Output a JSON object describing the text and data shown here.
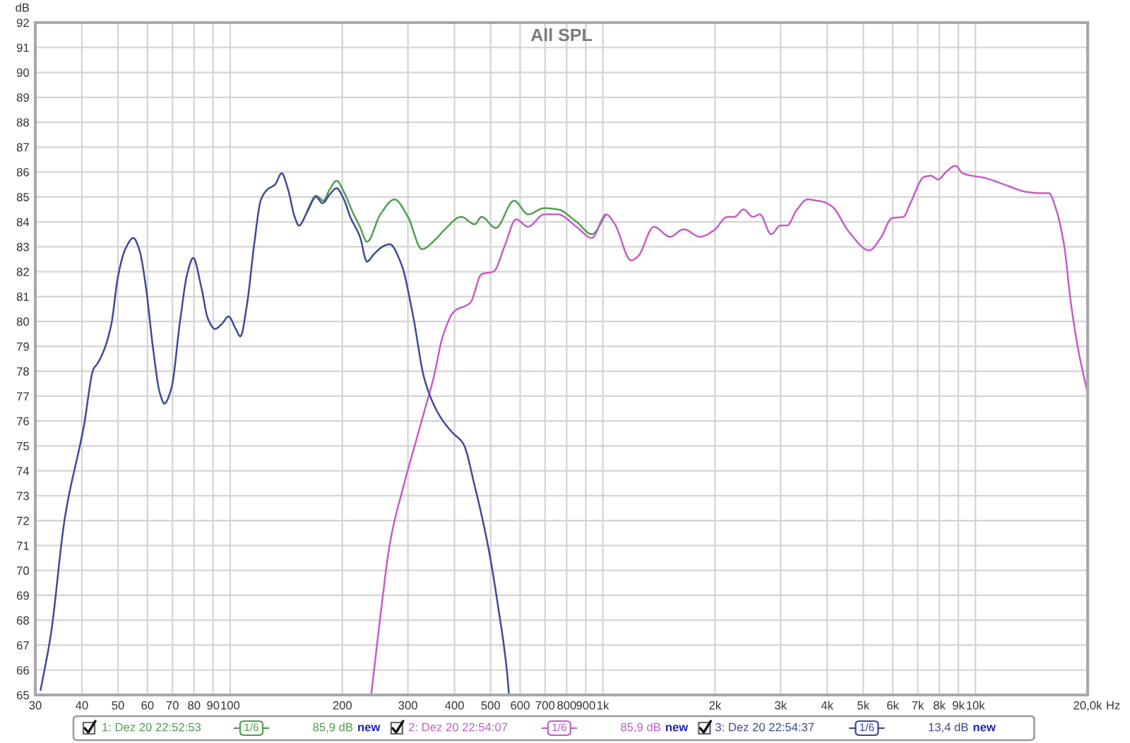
{
  "chart_data": {
    "type": "line",
    "title": "All SPL",
    "xlabel": "Hz",
    "ylabel": "dB",
    "log": "x",
    "grid": true,
    "legend": "bottom",
    "xlim": [
      30,
      20000
    ],
    "ylim": [
      65,
      92
    ],
    "xticks": [
      30,
      40,
      50,
      60,
      70,
      80,
      90,
      100,
      200,
      300,
      400,
      500,
      600,
      700,
      800,
      900,
      {
        "value": 1000,
        "label": "1k"
      },
      {
        "value": 2000,
        "label": "2k"
      },
      {
        "value": 3000,
        "label": "3k"
      },
      {
        "value": 4000,
        "label": "4k"
      },
      {
        "value": 5000,
        "label": "5k"
      },
      {
        "value": 6000,
        "label": "6k"
      },
      {
        "value": 7000,
        "label": "7k"
      },
      {
        "value": 8000,
        "label": "8k"
      },
      {
        "value": 9000,
        "label": "9k"
      },
      {
        "value": 10000,
        "label": "10k"
      },
      {
        "value": 20000,
        "label": "20,0k"
      }
    ],
    "yticks": [
      65,
      66,
      67,
      68,
      69,
      70,
      71,
      72,
      73,
      74,
      75,
      76,
      77,
      78,
      79,
      80,
      81,
      82,
      83,
      84,
      85,
      86,
      87,
      88,
      89,
      90,
      91,
      92
    ],
    "series": [
      {
        "name": "1: Dez 20 22:52:53",
        "color": "#4f9f4f",
        "x": [
          161,
          170,
          178,
          185,
          193,
          202,
          213,
          223,
          233,
          253,
          276,
          300,
          327,
          356,
          377,
          417,
          453,
          473,
          516,
          578,
          630,
          696,
          757,
          850,
          935,
          1020
        ],
        "values": [
          84.45,
          85.05,
          84.85,
          85.3,
          85.65,
          85.2,
          84.4,
          83.8,
          83.2,
          84.3,
          84.9,
          84.2,
          82.9,
          83.3,
          83.7,
          84.2,
          83.9,
          84.2,
          83.75,
          84.85,
          84.3,
          84.55,
          84.5,
          84.0,
          83.5,
          84.3
        ]
      },
      {
        "name": "2: Dez 20 22:54:07",
        "color": "#c35ec8",
        "x": [
          239,
          257,
          268,
          292,
          314,
          332,
          351,
          372,
          399,
          441,
          473,
          509,
          546,
          585,
          630,
          696,
          757,
          850,
          935,
          1020,
          1078,
          1190,
          1241,
          1371,
          1515,
          1648,
          1824,
          1985,
          2160,
          2255,
          2385,
          2530,
          2640,
          2830,
          2995,
          3125,
          3305,
          3545,
          3750,
          3910,
          4135,
          4575,
          5190,
          5565,
          5975,
          6410,
          6690,
          7280,
          7600,
          7935,
          8400,
          8840,
          9240,
          10680,
          11940,
          13740,
          14950,
          15750,
          16500,
          17300,
          18000,
          18800,
          19900
        ],
        "values": [
          65.0,
          69.0,
          71.05,
          73.4,
          75.1,
          76.4,
          77.7,
          79.4,
          80.4,
          80.75,
          81.9,
          82.0,
          83.05,
          84.1,
          83.8,
          84.3,
          84.3,
          83.8,
          83.35,
          84.3,
          83.9,
          82.45,
          82.6,
          83.8,
          83.4,
          83.7,
          83.4,
          83.65,
          84.2,
          84.2,
          84.5,
          84.2,
          84.3,
          83.5,
          83.85,
          83.85,
          84.45,
          84.9,
          84.85,
          84.8,
          84.6,
          83.6,
          82.85,
          83.35,
          84.15,
          84.2,
          84.75,
          85.8,
          85.85,
          85.7,
          86.05,
          86.25,
          85.95,
          85.75,
          85.5,
          85.2,
          85.15,
          85.15,
          84.45,
          83.05,
          80.85,
          79.0,
          77.25
        ]
      },
      {
        "name": "3: Dez 20 22:54:37",
        "color": "#3f4a96",
        "x": [
          31,
          33,
          36,
          40.5,
          43,
          44,
          46,
          48,
          50,
          52.3,
          55,
          57,
          59.4,
          62,
          64.7,
          66.6,
          69.5,
          73.5,
          76.8,
          79.6,
          83.6,
          87.2,
          91,
          95,
          99,
          103.5,
          106.5,
          111,
          116,
          121,
          126,
          132,
          137.5,
          143,
          149,
          153,
          161,
          170,
          177,
          185,
          193,
          202,
          210,
          223,
          233,
          243,
          260,
          268,
          288,
          309,
          332,
          362,
          394,
          422,
          453,
          494,
          523,
          554,
          560
        ],
        "values": [
          65.2,
          67.4,
          72.1,
          75.8,
          78.1,
          78.3,
          78.9,
          79.9,
          81.8,
          82.9,
          83.35,
          82.9,
          81.4,
          79.0,
          77.15,
          76.7,
          77.3,
          80.1,
          81.95,
          82.55,
          81.4,
          80.1,
          79.7,
          79.9,
          80.2,
          79.7,
          79.4,
          80.7,
          83.1,
          84.9,
          85.3,
          85.5,
          85.95,
          85.3,
          84.2,
          83.85,
          84.4,
          85.0,
          84.75,
          85.1,
          85.35,
          84.9,
          84.2,
          83.4,
          82.4,
          82.7,
          83.05,
          83.1,
          82.3,
          80.3,
          77.7,
          76.3,
          75.55,
          75.1,
          73.4,
          70.85,
          68.6,
          65.85,
          65.0
        ]
      }
    ],
    "annotations": [
      "1/6",
      "85,9 dB",
      "new",
      "1/6",
      "85,9 dB",
      "new",
      "1/6",
      "13,4 dB",
      "new"
    ]
  }
}
